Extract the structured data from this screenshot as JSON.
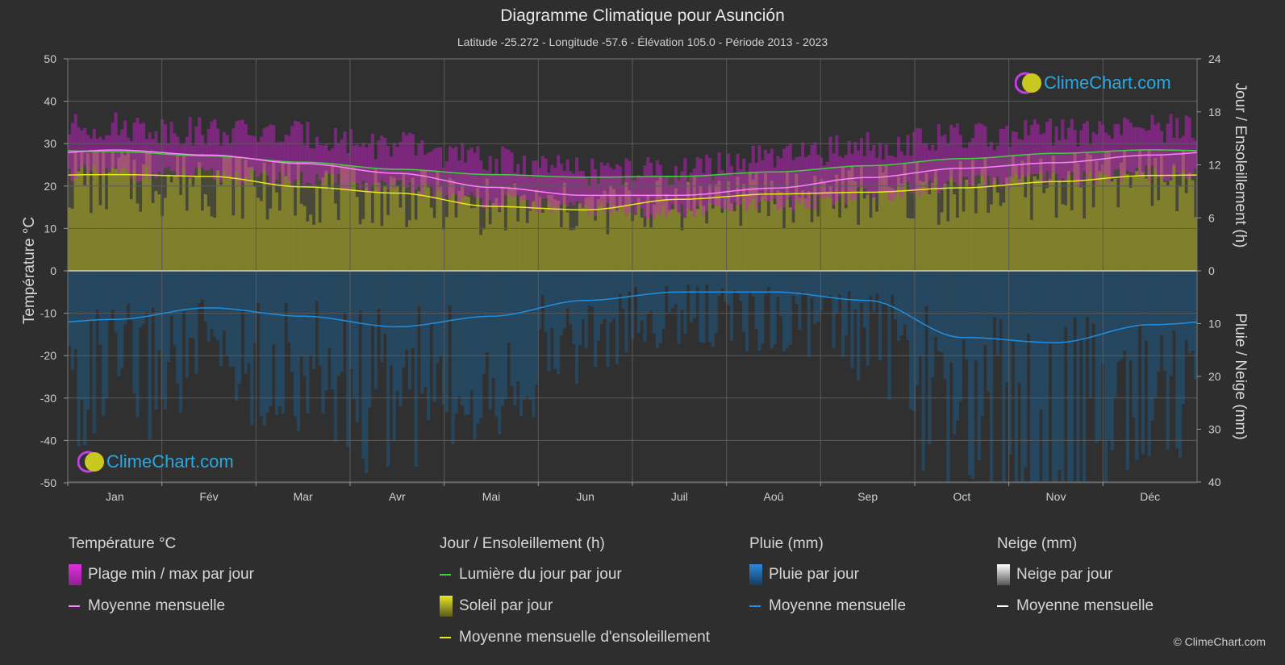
{
  "title": "Diagramme Climatique pour Asunción",
  "subtitle": "Latitude -25.272 - Longitude -57.6 - Élévation 105.0 - Période 2013 - 2023",
  "brand": "ClimeChart.com",
  "copyright": "© ClimeChart.com",
  "colors": {
    "background": "#2e2e2e",
    "temp_range": "#d020d0",
    "temp_mean": "#ff80ff",
    "daylight": "#40d040",
    "sunshine_fill": "#8a8a2a",
    "sunshine_mean": "#e8e820",
    "rain_bars": "#1f5a85",
    "rain_mean": "#1e8fe0",
    "snow_mean": "#ffffff"
  },
  "chart_data": {
    "type": "line",
    "months": [
      "Jan",
      "Fév",
      "Mar",
      "Avr",
      "Mai",
      "Jun",
      "Juil",
      "Aoû",
      "Sep",
      "Oct",
      "Nov",
      "Déc"
    ],
    "axes": {
      "left": {
        "label": "Température °C",
        "range": [
          -50,
          50
        ],
        "ticks": [
          50,
          40,
          30,
          20,
          10,
          0,
          -10,
          -20,
          -30,
          -40,
          -50
        ]
      },
      "right_top": {
        "label": "Jour / Ensoleillement (h)",
        "range": [
          0,
          24
        ],
        "ticks": [
          24,
          18,
          12,
          6,
          0
        ]
      },
      "right_bottom": {
        "label": "Pluie / Neige (mm)",
        "range": [
          0,
          40
        ],
        "ticks": [
          10,
          20,
          30,
          40
        ]
      }
    },
    "series": [
      {
        "name": "Plage min / max par jour",
        "kind": "band",
        "min": [
          23,
          22.5,
          21.5,
          19.5,
          16.5,
          14.5,
          14,
          15.5,
          18,
          20.5,
          21.5,
          23
        ],
        "max": [
          34,
          33,
          32,
          29.5,
          26,
          23.5,
          23.5,
          26.5,
          29.5,
          31.5,
          32.5,
          33.5
        ]
      },
      {
        "name": "Moyenne mensuelle (température)",
        "unit": "°C",
        "values": [
          28.5,
          27.3,
          25.3,
          23,
          19.7,
          17.8,
          17.8,
          19.5,
          22,
          24.2,
          25.5,
          27.3
        ]
      },
      {
        "name": "Lumière du jour par jour",
        "unit": "h",
        "values": [
          13.5,
          13.0,
          12.3,
          11.5,
          10.9,
          10.6,
          10.7,
          11.2,
          11.9,
          12.7,
          13.3,
          13.7
        ]
      },
      {
        "name": "Moyenne mensuelle d'ensoleillement",
        "unit": "h",
        "values": [
          10.9,
          10.7,
          9.5,
          8.8,
          7.3,
          6.9,
          8.1,
          8.7,
          8.9,
          9.4,
          10.1,
          10.8
        ]
      },
      {
        "name": "Moyenne mensuelle (pluie)",
        "unit": "mm",
        "values": [
          9.2,
          7.0,
          8.6,
          10.6,
          8.6,
          5.6,
          4.0,
          4.0,
          5.6,
          12.6,
          13.6,
          10.2
        ]
      },
      {
        "name": "Moyenne mensuelle (neige)",
        "unit": "mm",
        "values": [
          0,
          0,
          0,
          0,
          0,
          0,
          0,
          0,
          0,
          0,
          0,
          0
        ]
      }
    ]
  },
  "legend": {
    "temperature": {
      "title": "Température °C",
      "items": [
        "Plage min / max par jour",
        "Moyenne mensuelle"
      ]
    },
    "sun": {
      "title": "Jour / Ensoleillement (h)",
      "items": [
        "Lumière du jour par jour",
        "Soleil par jour",
        "Moyenne mensuelle d'ensoleillement"
      ]
    },
    "rain": {
      "title": "Pluie (mm)",
      "items": [
        "Pluie par jour",
        "Moyenne mensuelle"
      ]
    },
    "snow": {
      "title": "Neige (mm)",
      "items": [
        "Neige par jour",
        "Moyenne mensuelle"
      ]
    }
  }
}
